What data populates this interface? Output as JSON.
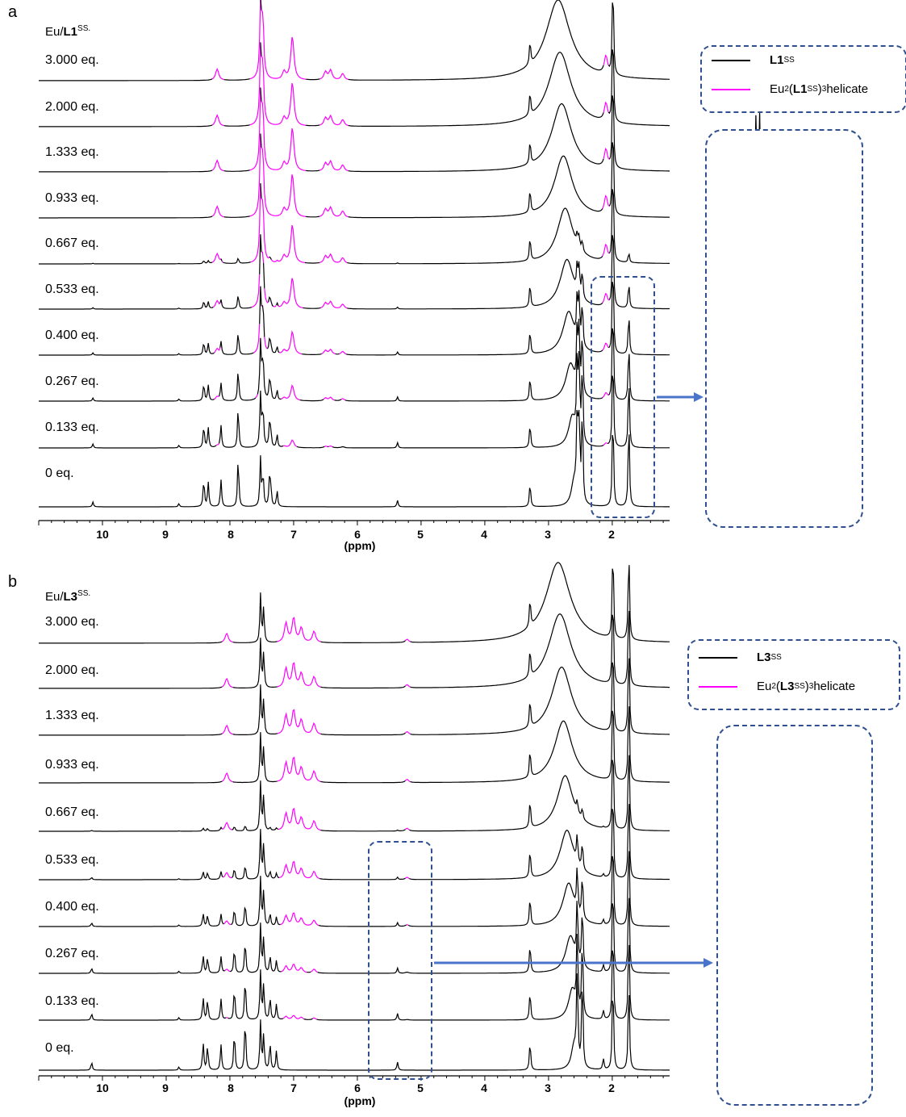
{
  "panels": [
    {
      "id": "a",
      "letter": "a",
      "title_prefix": "Eu/",
      "title_ligand": "L1",
      "title_sup": "SS.",
      "legend": {
        "black_label_main": "L1",
        "black_label_sup": "SS",
        "magenta_label_pre": "Eu",
        "magenta_label_sub": "2",
        "magenta_label_ligand": "L1",
        "magenta_label_sup": "SS",
        "magenta_label_post": ")",
        "magenta_label_sub2": "3",
        "magenta_label_tail": " helicate",
        "magenta_label_paren": "("
      },
      "traces": [
        "3.000 eq.",
        "2.000 eq.",
        "1.333 eq.",
        "0.933 eq.",
        "0.667 eq.",
        "0.533 eq.",
        "0.400 eq.",
        "0.267 eq.",
        "0.133 eq.",
        "0 eq."
      ],
      "xlabel": "(ppm)",
      "xticks": [
        "10",
        "9",
        "8",
        "7",
        "6",
        "5",
        "4",
        "3",
        "2"
      ]
    },
    {
      "id": "b",
      "letter": "b",
      "title_prefix": "Eu/",
      "title_ligand": "L3",
      "title_sup": "SS.",
      "legend": {
        "black_label_main": "L3",
        "black_label_sup": "SS",
        "magenta_label_pre": "Eu",
        "magenta_label_sub": "2",
        "magenta_label_ligand": "L3",
        "magenta_label_sup": "SS",
        "magenta_label_post": ")",
        "magenta_label_sub2": "3",
        "magenta_label_tail": " helicate",
        "magenta_label_paren": "("
      },
      "traces": [
        "3.000 eq.",
        "2.000 eq.",
        "1.333 eq.",
        "0.933 eq.",
        "0.667 eq.",
        "0.533 eq.",
        "0.400 eq.",
        "0.267 eq.",
        "0.133 eq.",
        "0 eq."
      ],
      "xlabel": "(ppm)",
      "xticks": [
        "10",
        "9",
        "8",
        "7",
        "6",
        "5",
        "4",
        "3",
        "2"
      ]
    }
  ],
  "colors": {
    "ligand": "#000000",
    "helicate": "#ff00ff",
    "frame": "#2f4f8f",
    "arrow": "#4a74c9"
  },
  "chart_data": [
    {
      "type": "line",
      "panel": "a",
      "xlabel": "(ppm)",
      "xlim": [
        11.0,
        1.1
      ],
      "x_reversed": true,
      "series": [
        {
          "name": "L1SS",
          "color": "#000000",
          "trace": "0 eq.",
          "peaks": [
            [
              10.15,
              6
            ],
            [
              8.8,
              4
            ],
            [
              8.41,
              34
            ],
            [
              8.34,
              30
            ],
            [
              8.14,
              34
            ],
            [
              7.87,
              62
            ],
            [
              7.52,
              60
            ],
            [
              7.48,
              40
            ],
            [
              7.38,
              30
            ],
            [
              7.36,
              26
            ],
            [
              7.26,
              20
            ],
            [
              5.37,
              8
            ],
            [
              3.29,
              30
            ],
            [
              2.55,
              118
            ],
            [
              2.52,
              118
            ],
            [
              2.47,
              118
            ],
            [
              1.99,
              120
            ],
            [
              1.74,
              110
            ]
          ]
        },
        {
          "name": "Eu2(L1SS)3 helicate",
          "color": "#ff00ff",
          "trace": "3.000 eq.",
          "peaks": [
            [
              8.2,
              14
            ],
            [
              7.5,
              58
            ],
            [
              7.15,
              10
            ],
            [
              7.02,
              54
            ],
            [
              6.5,
              10
            ],
            [
              6.42,
              12
            ],
            [
              6.23,
              8
            ],
            [
              2.1,
              22
            ]
          ]
        }
      ],
      "traces": [
        "3.000 eq.",
        "2.000 eq.",
        "1.333 eq.",
        "0.933 eq.",
        "0.667 eq.",
        "0.533 eq.",
        "0.400 eq.",
        "0.267 eq.",
        "0.133 eq.",
        "0 eq."
      ]
    },
    {
      "type": "line",
      "panel": "b",
      "xlabel": "(ppm)",
      "xlim": [
        11.0,
        1.1
      ],
      "x_reversed": true,
      "series": [
        {
          "name": "L3SS",
          "color": "#000000",
          "trace": "0 eq.",
          "peaks": [
            [
              10.17,
              10
            ],
            [
              8.8,
              4
            ],
            [
              8.42,
              34
            ],
            [
              8.35,
              30
            ],
            [
              8.14,
              32
            ],
            [
              7.93,
              48
            ],
            [
              7.76,
              64
            ],
            [
              7.52,
              60
            ],
            [
              7.47,
              44
            ],
            [
              7.37,
              34
            ],
            [
              7.27,
              24
            ],
            [
              5.37,
              10
            ],
            [
              3.29,
              36
            ],
            [
              2.55,
              118
            ],
            [
              2.47,
              118
            ],
            [
              2.14,
              14
            ],
            [
              1.99,
              116
            ],
            [
              1.74,
              114
            ]
          ]
        },
        {
          "name": "Eu2(L3SS)3 helicate",
          "color": "#ff00ff",
          "trace": "3.000 eq.",
          "peaks": [
            [
              8.05,
              12
            ],
            [
              7.12,
              24
            ],
            [
              7.0,
              30
            ],
            [
              6.88,
              18
            ],
            [
              6.68,
              14
            ],
            [
              5.22,
              4
            ]
          ]
        }
      ],
      "traces": [
        "3.000 eq.",
        "2.000 eq.",
        "1.333 eq.",
        "0.933 eq.",
        "0.667 eq.",
        "0.533 eq.",
        "0.400 eq.",
        "0.267 eq.",
        "0.133 eq.",
        "0 eq."
      ]
    }
  ]
}
